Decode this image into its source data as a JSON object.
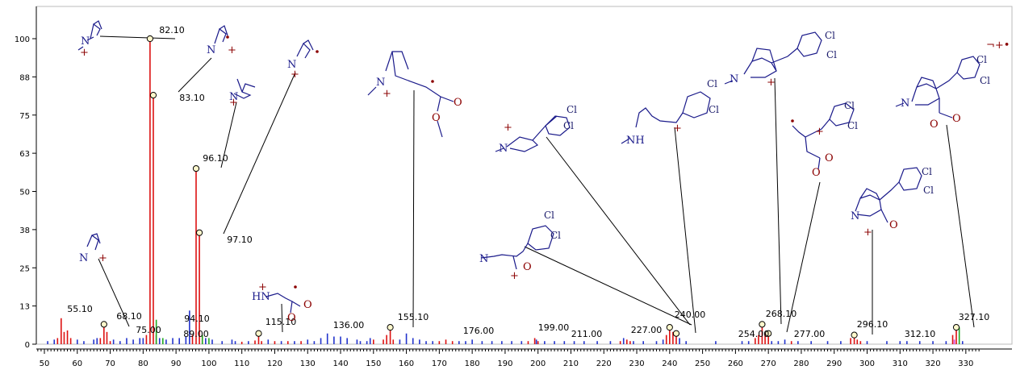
{
  "chart_data": {
    "type": "bar",
    "title": "",
    "xlabel": "",
    "ylabel": "",
    "xlim": [
      47,
      335
    ],
    "ylim": [
      0,
      108
    ],
    "x_ticks": [
      50,
      60,
      70,
      80,
      90,
      100,
      110,
      120,
      130,
      140,
      150,
      160,
      170,
      180,
      190,
      200,
      210,
      220,
      230,
      240,
      250,
      260,
      270,
      280,
      290,
      300,
      310,
      320,
      330
    ],
    "y_ticks": [
      "0",
      "13",
      "25",
      "38",
      "50",
      "63",
      "75",
      "88",
      "100"
    ],
    "y_tick_values": [
      0,
      12.5,
      25,
      37.5,
      50,
      62.5,
      75,
      87.5,
      100
    ],
    "peak_labels": [
      "55.10",
      "68.10",
      "75.00",
      "82.10",
      "83.10",
      "89.00",
      "94.10",
      "96.10",
      "97.10",
      "115.10",
      "136.00",
      "155.10",
      "176.00",
      "199.00",
      "211.00",
      "227.00",
      "240.00",
      "254.00",
      "268.10",
      "277.00",
      "296.10",
      "312.10",
      "327.10"
    ],
    "series": [
      {
        "color": "#dd1111",
        "points": [
          [
            54,
            2
          ],
          [
            55.1,
            8.5
          ],
          [
            56,
            4
          ],
          [
            57,
            4.5
          ],
          [
            58,
            2
          ],
          [
            67,
            2
          ],
          [
            68.1,
            6.5
          ],
          [
            69,
            4
          ],
          [
            70,
            1
          ],
          [
            81,
            3
          ],
          [
            82.1,
            100
          ],
          [
            83.1,
            81.5
          ],
          [
            84,
            3
          ],
          [
            95,
            3
          ],
          [
            96.1,
            57.5
          ],
          [
            97.1,
            36.5
          ],
          [
            98,
            3
          ],
          [
            110,
            0.8
          ],
          [
            114,
            1.2
          ],
          [
            115.1,
            3.5
          ],
          [
            116,
            1
          ],
          [
            120,
            1
          ],
          [
            124,
            1
          ],
          [
            128,
            1
          ],
          [
            150,
            1.5
          ],
          [
            153,
            1.5
          ],
          [
            154,
            3
          ],
          [
            155.1,
            5.5
          ],
          [
            156,
            1.5
          ],
          [
            170,
            1
          ],
          [
            172,
            1.5
          ],
          [
            174,
            1
          ],
          [
            197,
            1
          ],
          [
            199,
            2
          ],
          [
            200,
            1
          ],
          [
            225,
            1
          ],
          [
            227,
            1.5
          ],
          [
            228,
            1
          ],
          [
            239,
            3
          ],
          [
            240,
            5.5
          ],
          [
            241,
            4
          ],
          [
            242,
            3.5
          ],
          [
            266,
            2
          ],
          [
            267,
            3
          ],
          [
            268.1,
            6.5
          ],
          [
            269,
            3.5
          ],
          [
            270,
            3.5
          ],
          [
            277,
            1
          ],
          [
            295,
            2
          ],
          [
            296.1,
            3
          ],
          [
            297,
            1.5
          ],
          [
            298,
            1
          ],
          [
            326,
            3
          ],
          [
            327.1,
            5.5
          ]
        ]
      },
      {
        "color": "#2233cc",
        "points": [
          [
            51,
            1
          ],
          [
            53,
            1.5
          ],
          [
            60,
            1.5
          ],
          [
            62,
            1
          ],
          [
            65,
            1.5
          ],
          [
            66,
            2
          ],
          [
            71,
            1.5
          ],
          [
            73,
            1
          ],
          [
            75,
            2
          ],
          [
            77,
            1.5
          ],
          [
            79,
            2
          ],
          [
            80,
            2
          ],
          [
            85,
            2
          ],
          [
            87,
            1.5
          ],
          [
            89,
            2
          ],
          [
            91,
            2
          ],
          [
            93,
            2.5
          ],
          [
            94.1,
            11
          ],
          [
            99,
            2
          ],
          [
            101,
            1.5
          ],
          [
            104,
            1
          ],
          [
            107,
            1.5
          ],
          [
            108,
            1
          ],
          [
            112,
            1
          ],
          [
            118,
            1.5
          ],
          [
            122,
            1
          ],
          [
            126,
            1
          ],
          [
            130,
            1.5
          ],
          [
            132,
            1
          ],
          [
            134,
            2
          ],
          [
            136,
            3.5
          ],
          [
            138,
            2.5
          ],
          [
            140,
            2.5
          ],
          [
            142,
            2
          ],
          [
            145,
            1.5
          ],
          [
            146,
            1
          ],
          [
            148,
            1
          ],
          [
            149,
            2
          ],
          [
            158,
            1.5
          ],
          [
            160,
            3.5
          ],
          [
            162,
            2
          ],
          [
            164,
            1.5
          ],
          [
            166,
            1
          ],
          [
            168,
            1
          ],
          [
            176,
            1
          ],
          [
            178,
            1
          ],
          [
            180,
            1.5
          ],
          [
            183,
            1
          ],
          [
            186,
            1
          ],
          [
            189,
            1
          ],
          [
            192,
            1
          ],
          [
            195,
            1
          ],
          [
            199.5,
            1.5
          ],
          [
            202,
            1
          ],
          [
            205,
            1
          ],
          [
            208,
            1
          ],
          [
            211,
            1
          ],
          [
            214,
            1
          ],
          [
            218,
            1
          ],
          [
            222,
            1
          ],
          [
            226,
            2
          ],
          [
            229,
            1
          ],
          [
            232,
            1
          ],
          [
            236,
            1
          ],
          [
            238,
            1.5
          ],
          [
            243,
            2
          ],
          [
            245,
            1
          ],
          [
            254,
            1
          ],
          [
            262,
            1
          ],
          [
            264,
            1
          ],
          [
            271,
            1
          ],
          [
            273,
            1
          ],
          [
            275,
            1.5
          ],
          [
            279,
            1
          ],
          [
            283,
            1
          ],
          [
            288,
            1
          ],
          [
            292,
            1
          ],
          [
            300,
            1
          ],
          [
            306,
            1
          ],
          [
            310,
            1
          ],
          [
            312.1,
            1
          ],
          [
            316,
            1
          ],
          [
            320,
            1
          ],
          [
            324,
            1
          ],
          [
            329,
            1
          ]
        ]
      },
      {
        "color": "#22aa22",
        "points": [
          [
            84,
            8
          ],
          [
            86,
            2
          ],
          [
            98,
            3
          ],
          [
            100,
            2
          ],
          [
            328,
            5.5
          ]
        ]
      },
      {
        "color": "#dd44dd",
        "points": [
          [
            326.5,
            1.5
          ]
        ]
      }
    ]
  }
}
